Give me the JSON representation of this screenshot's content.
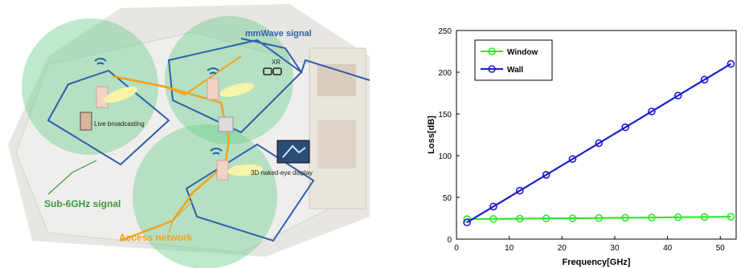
{
  "illustration": {
    "mmwave_label": "mmWave signal",
    "sub6_label": "Sub-6GHz signal",
    "access_label": "Access network",
    "live_label": "Live broadcasting",
    "xr_label": "XR",
    "naked_eye_label": "3D naked-eye display",
    "colors": {
      "mmwave": "#2f5fae",
      "sub6": "#3e9a3a",
      "access": "#f0a21a",
      "coverage": "#6fcf8f"
    }
  },
  "chart_data": {
    "type": "line",
    "xlabel": "Frequency[GHz]",
    "ylabel": "Loss[dB]",
    "xlim": [
      0,
      53
    ],
    "ylim": [
      0,
      250
    ],
    "xticks": [
      0,
      10,
      20,
      30,
      40,
      50
    ],
    "yticks": [
      0,
      50,
      100,
      150,
      200,
      250
    ],
    "grid": false,
    "legend_position": "top-left",
    "x": [
      2,
      7,
      12,
      17,
      22,
      27,
      32,
      37,
      42,
      47,
      52
    ],
    "series": [
      {
        "name": "Window",
        "color": "#2ee82e",
        "values": [
          24,
          24.2,
          24.5,
          24.8,
          25,
          25.3,
          25.6,
          25.9,
          26.2,
          26.5,
          26.8
        ]
      },
      {
        "name": "Wall",
        "color": "#1c1ccc",
        "values": [
          20,
          39,
          58,
          77,
          96,
          115,
          134,
          153,
          172,
          191,
          210
        ]
      }
    ]
  }
}
